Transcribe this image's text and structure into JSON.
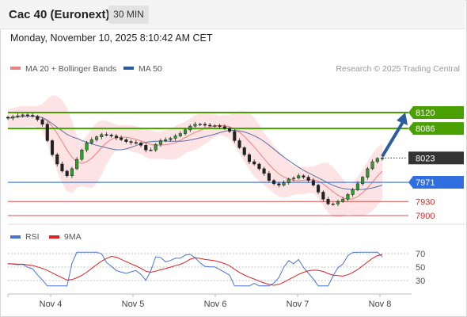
{
  "header": {
    "instrument": "Cac 40 (Euronext)",
    "timeframe": "30 MIN"
  },
  "timestamp": "Monday, November 10, 2025 8:10:42 AM CET",
  "legend": {
    "bb": {
      "label": "MA 20 + Bollinger Bands",
      "color": "#f08080"
    },
    "ma50": {
      "label": "MA 50",
      "color": "#2b5c9e"
    },
    "source": "Research © 2025 Trading Central"
  },
  "rsi_legend": {
    "rsi": {
      "label": "RSI",
      "color": "#4a72d6"
    },
    "ma9": {
      "label": "9MA",
      "color": "#e02020"
    }
  },
  "chart_data": {
    "type": "candlestick",
    "x_ticks": [
      "Nov 4",
      "Nov 5",
      "Nov 6",
      "Nov 7",
      "Nov 8"
    ],
    "price_levels": [
      {
        "label": "8120",
        "value": 8120,
        "kind": "resistance",
        "color": "#4aa000"
      },
      {
        "label": "8086",
        "value": 8086,
        "kind": "resistance",
        "color": "#4aa000"
      },
      {
        "label": "8023",
        "value": 8023,
        "kind": "last",
        "color": "#333333"
      },
      {
        "label": "7971",
        "value": 7971,
        "kind": "pivot",
        "color": "#2f6fe0"
      },
      {
        "label": "7930",
        "value": 7930,
        "kind": "support",
        "color": "#e05050"
      },
      {
        "label": "7900",
        "value": 7900,
        "kind": "support",
        "color": "#e05050"
      }
    ],
    "rsi_ticks": [
      "70",
      "50",
      "30"
    ],
    "close_path": [
      8108,
      8111,
      8113,
      8115,
      8114,
      8112,
      8105,
      8095,
      8060,
      8030,
      8010,
      7995,
      7985,
      8000,
      8020,
      8040,
      8055,
      8062,
      8068,
      8073,
      8072,
      8070,
      8066,
      8062,
      8058,
      8056,
      8055,
      8050,
      8040,
      8040,
      8052,
      8060,
      8062,
      8065,
      8070,
      8075,
      8083,
      8091,
      8095,
      8095,
      8093,
      8092,
      8092,
      8090,
      8086,
      8080,
      8060,
      8045,
      8030,
      8015,
      8010,
      8000,
      7990,
      7975,
      7968,
      7965,
      7970,
      7978,
      7980,
      7985,
      7982,
      7975,
      7965,
      7950,
      7935,
      7925,
      7925,
      7930,
      7935,
      7945,
      7955,
      7968,
      7982,
      8000,
      8015,
      8022,
      8023
    ]
  }
}
